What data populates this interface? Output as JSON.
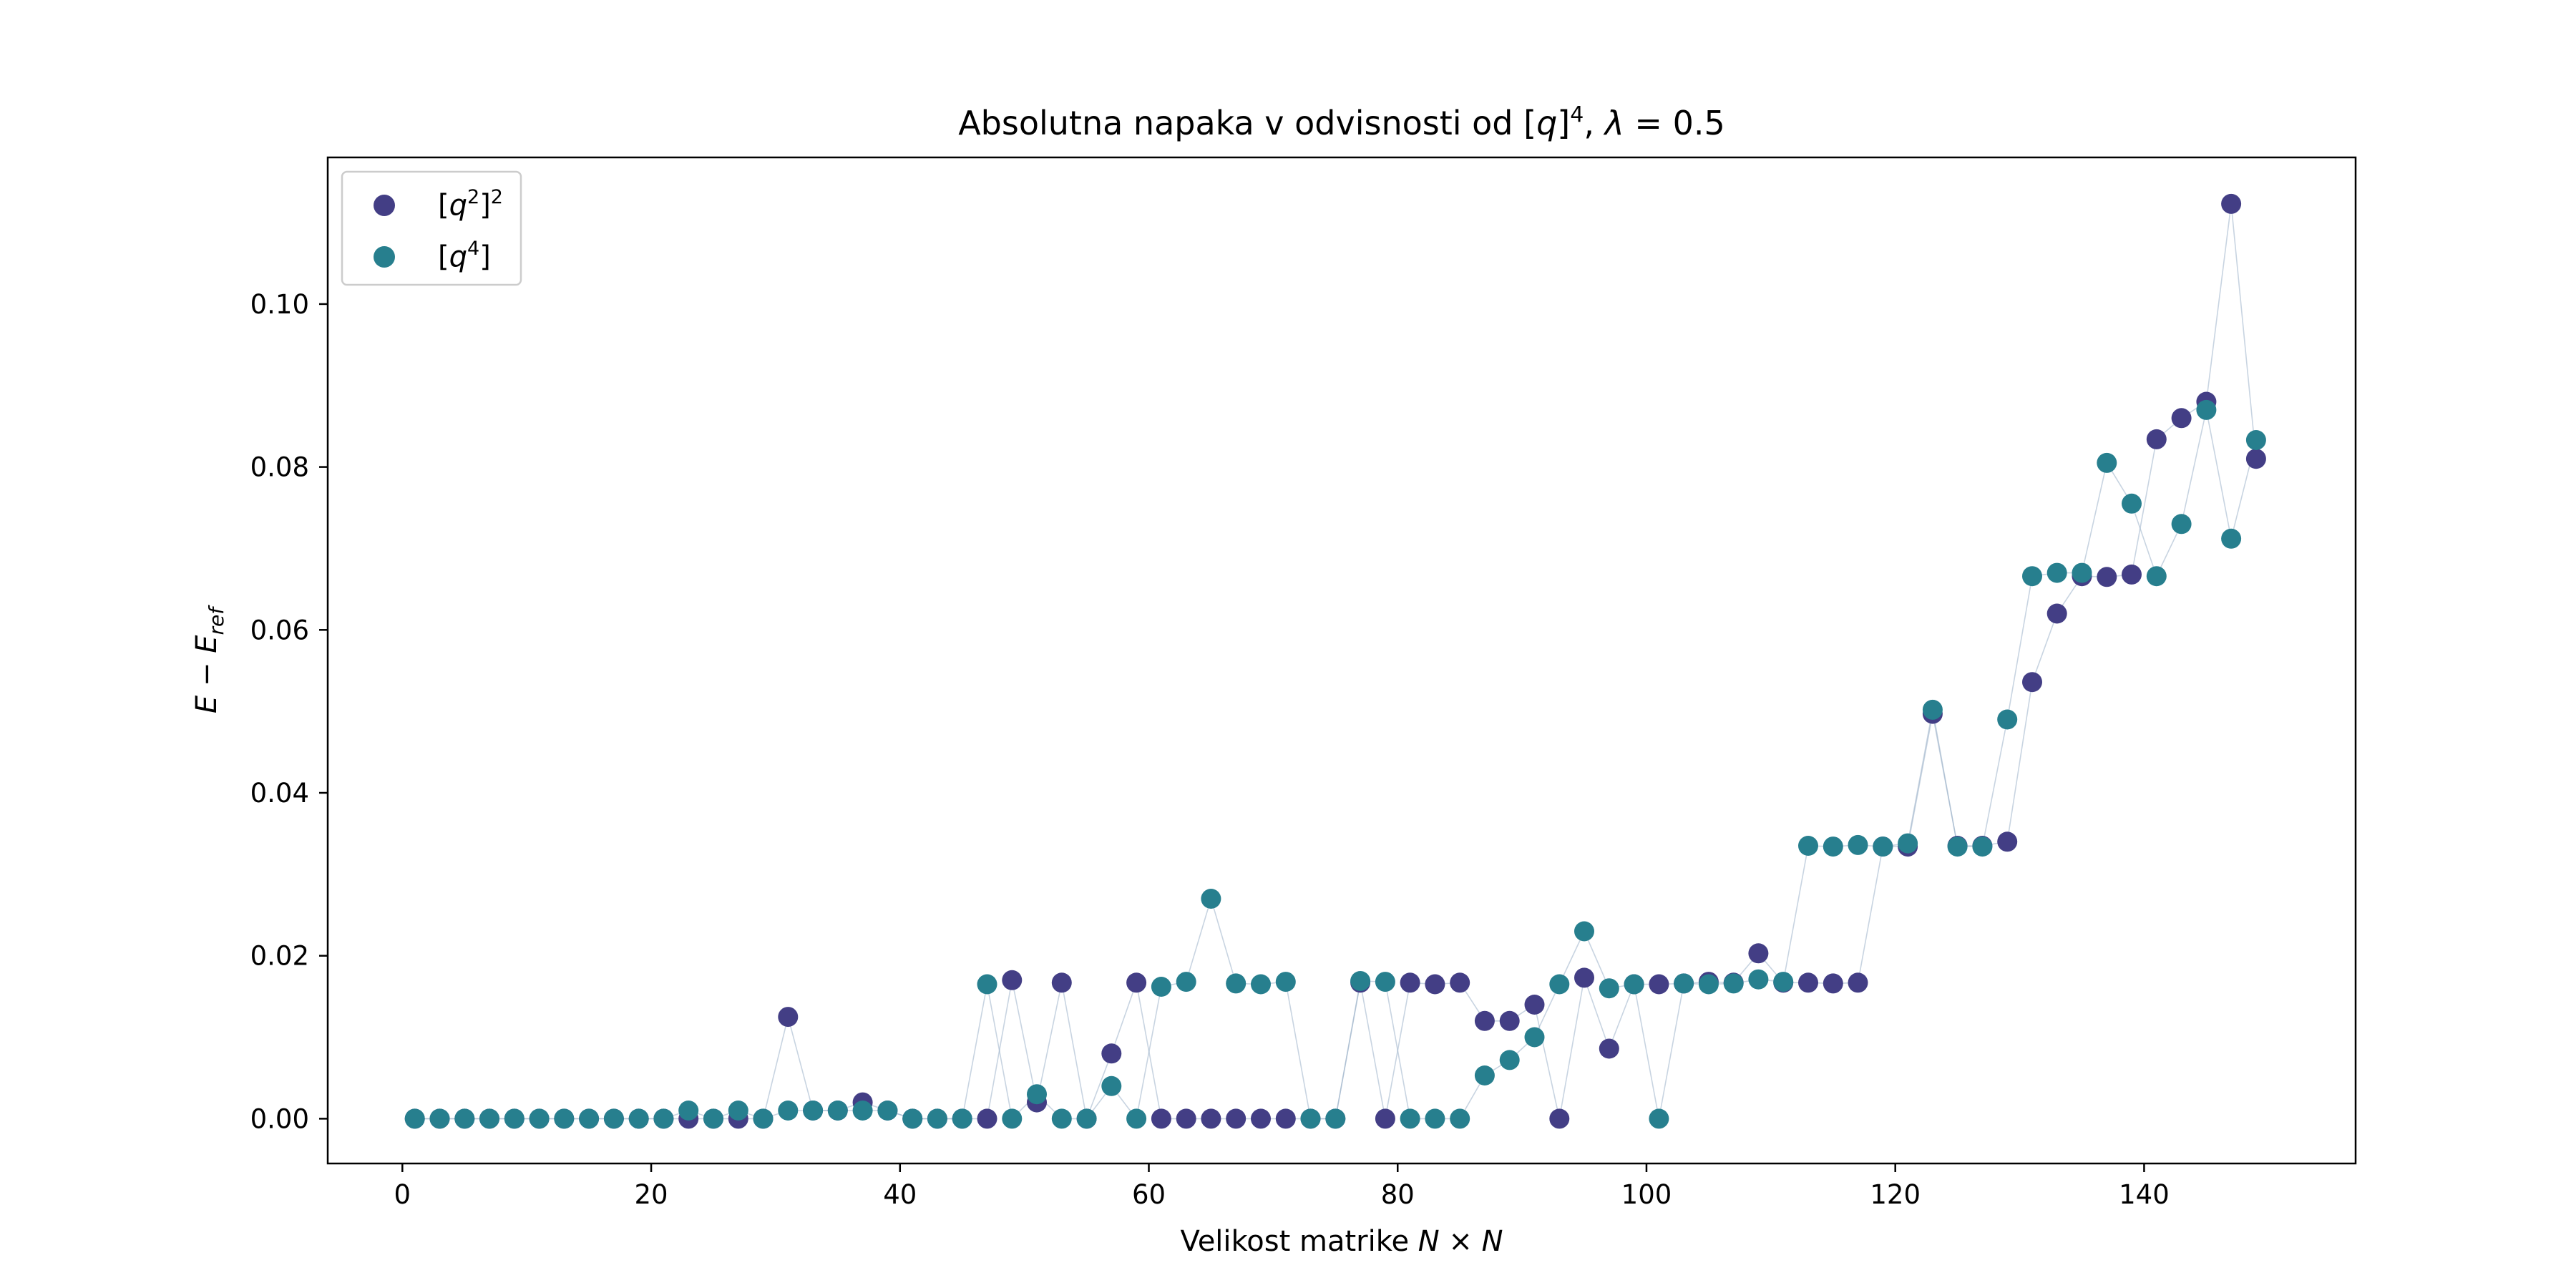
{
  "chart_data": {
    "type": "scatter",
    "title": "Absolutna napaka v odvisnosti od [q]^4, λ = 0.5",
    "title_parts": [
      "Absolutna napaka v odvisnosti od [",
      "q",
      "]",
      "4",
      ", ",
      "λ",
      " = 0.5"
    ],
    "xlabel": "Velikost matrike N × N",
    "xlabel_parts": [
      "Velikost matrike ",
      "N",
      " × ",
      "N"
    ],
    "ylabel": "E − E_ref",
    "ylabel_parts": [
      "E",
      " − ",
      "E",
      "ref"
    ],
    "xlim": [
      -6,
      157
    ],
    "ylim": [
      -0.0055,
      0.118
    ],
    "xticks": [
      0,
      20,
      40,
      60,
      80,
      100,
      120,
      140
    ],
    "yticks": [
      0.0,
      0.02,
      0.04,
      0.06,
      0.08,
      0.1
    ],
    "ytick_labels": [
      "0.00",
      "0.02",
      "0.04",
      "0.06",
      "0.08",
      "0.10"
    ],
    "grid": false,
    "legend_position": "upper-left",
    "series": [
      {
        "name": "[q^2]^2",
        "label_parts": [
          "[",
          "q",
          "2",
          "]",
          "2"
        ],
        "color": "#433e85",
        "x": [
          1,
          3,
          5,
          7,
          9,
          11,
          13,
          15,
          17,
          19,
          21,
          23,
          25,
          27,
          29,
          31,
          33,
          35,
          37,
          39,
          41,
          43,
          45,
          47,
          49,
          51,
          53,
          55,
          57,
          59,
          61,
          63,
          65,
          67,
          69,
          71,
          73,
          75,
          77,
          79,
          81,
          83,
          85,
          87,
          89,
          91,
          93,
          95,
          97,
          99,
          101,
          103,
          105,
          107,
          109,
          111,
          113,
          115,
          117,
          119,
          121,
          123,
          125,
          127,
          129,
          131,
          133,
          135,
          137,
          139,
          141,
          143,
          145,
          147,
          149
        ],
        "y": [
          0,
          0,
          0,
          0,
          0,
          0,
          0,
          0,
          0,
          0,
          0,
          0,
          0,
          0,
          0,
          0.0125,
          0.001,
          0.001,
          0.002,
          0.001,
          0,
          0,
          0,
          0,
          0.017,
          0.002,
          0.0167,
          0,
          0.008,
          0.0167,
          0,
          0,
          0,
          0,
          0,
          0,
          0,
          0,
          0.0167,
          0,
          0.0167,
          0.0165,
          0.0167,
          0.012,
          0.012,
          0.014,
          0,
          0.0173,
          0.0086,
          0.0165,
          0.0165,
          0.0166,
          0.0168,
          0.0167,
          0.0203,
          0.0167,
          0.0167,
          0.0166,
          0.0167,
          0.0334,
          0.0334,
          0.0497,
          0.0335,
          0.0335,
          0.034,
          0.0536,
          0.062,
          0.0666,
          0.0665,
          0.0668,
          0.0834,
          0.086,
          0.088,
          0.1123,
          0.081
        ]
      },
      {
        "name": "[q^4]",
        "label_parts": [
          "[",
          "q",
          "4",
          "]"
        ],
        "color": "#277f8e",
        "x": [
          1,
          3,
          5,
          7,
          9,
          11,
          13,
          15,
          17,
          19,
          21,
          23,
          25,
          27,
          29,
          31,
          33,
          35,
          37,
          39,
          41,
          43,
          45,
          47,
          49,
          51,
          53,
          55,
          57,
          59,
          61,
          63,
          65,
          67,
          69,
          71,
          73,
          75,
          77,
          79,
          81,
          83,
          85,
          87,
          89,
          91,
          93,
          95,
          97,
          99,
          101,
          103,
          105,
          107,
          109,
          111,
          113,
          115,
          117,
          119,
          121,
          123,
          125,
          127,
          129,
          131,
          133,
          135,
          137,
          139,
          141,
          143,
          145,
          147,
          149
        ],
        "y": [
          0,
          0,
          0,
          0,
          0,
          0,
          0,
          0,
          0,
          0,
          0,
          0.001,
          0,
          0.001,
          0,
          0.001,
          0.001,
          0.001,
          0.001,
          0.001,
          0,
          0,
          0,
          0.0165,
          0,
          0.003,
          0,
          0,
          0.004,
          0,
          0.0162,
          0.0168,
          0.027,
          0.0166,
          0.0165,
          0.0168,
          0,
          0,
          0.0169,
          0.0168,
          0,
          0,
          0,
          0.0053,
          0.0072,
          0.01,
          0.0165,
          0.023,
          0.016,
          0.0165,
          0,
          0.0166,
          0.0165,
          0.0166,
          0.0171,
          0.0168,
          0.0335,
          0.0334,
          0.0336,
          0.0334,
          0.0338,
          0.0502,
          0.0334,
          0.0334,
          0.049,
          0.0666,
          0.067,
          0.067,
          0.0805,
          0.0755,
          0.0666,
          0.073,
          0.087,
          0.0712,
          0.0833
        ]
      }
    ],
    "line_color": "#9bb0c8"
  }
}
